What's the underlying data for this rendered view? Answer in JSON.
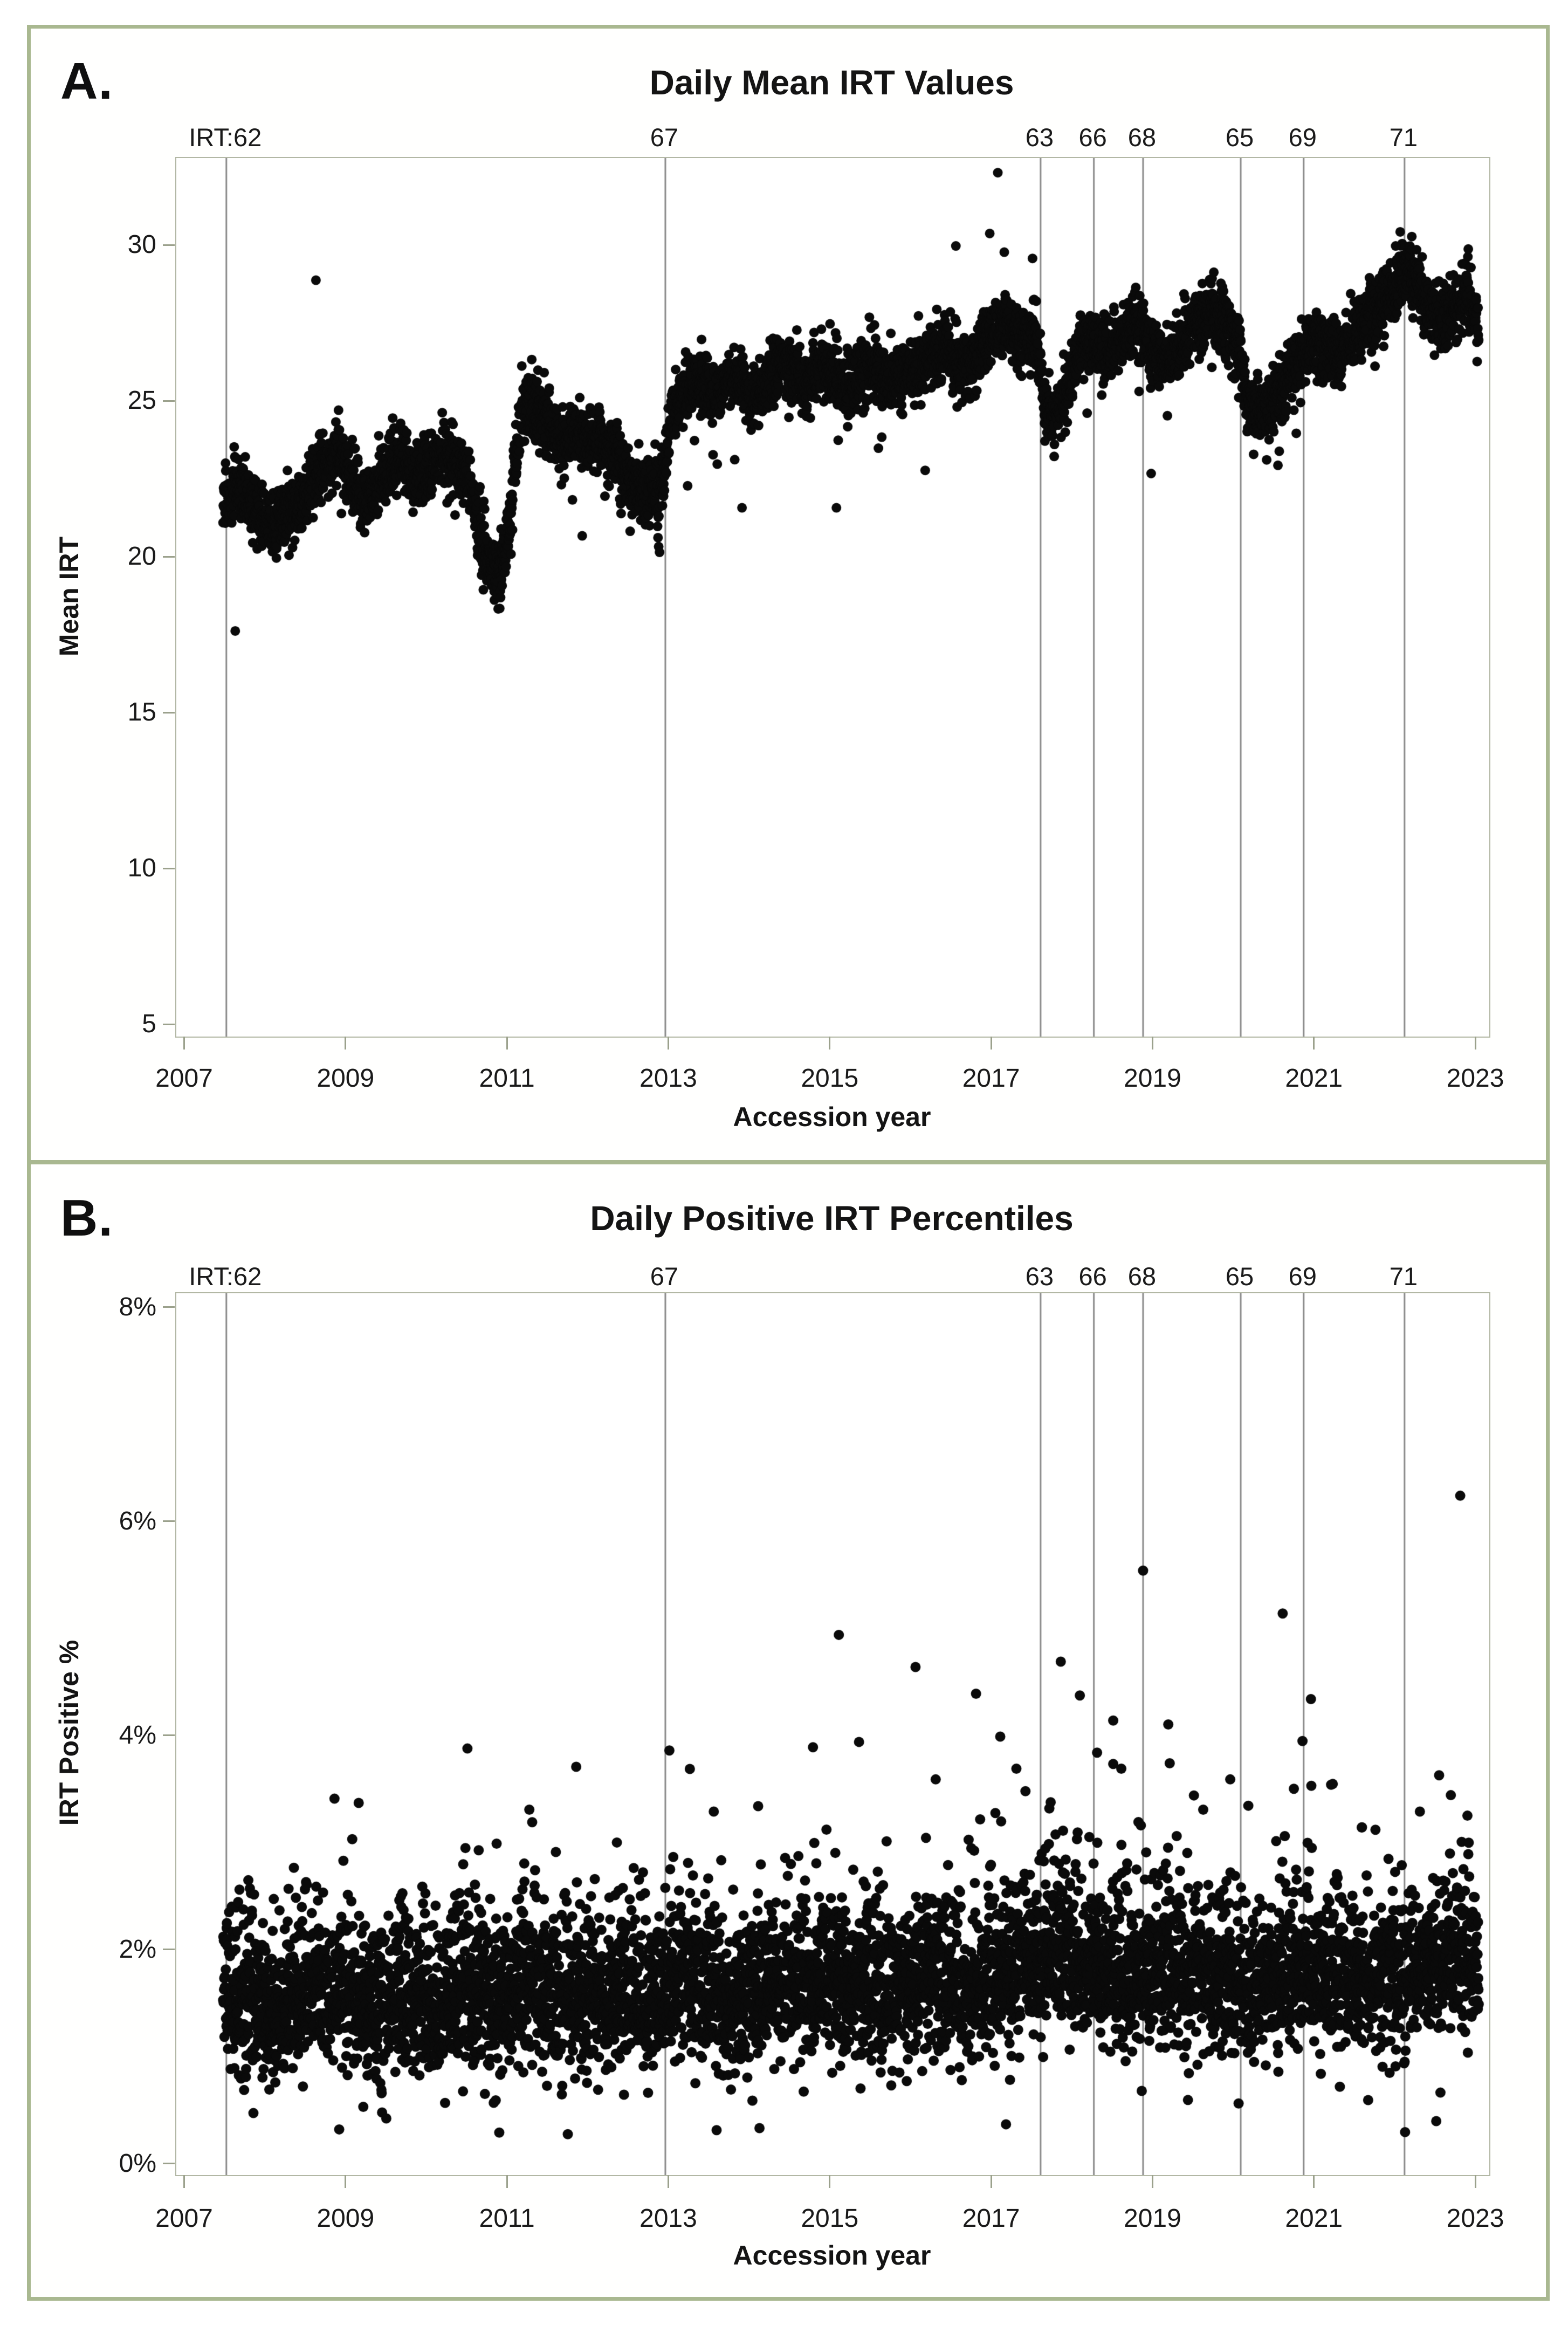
{
  "figure": {
    "panels": [
      {
        "corner_label": "A.",
        "title": "Daily Mean IRT Values",
        "xlabel": "Accession year",
        "ylabel": "Mean IRT"
      },
      {
        "corner_label": "B.",
        "title": "Daily Positive IRT Percentiles",
        "xlabel": "Accession year",
        "ylabel": "IRT Positive %"
      }
    ],
    "colors": {
      "panel_border": "#a9b890",
      "plot_frame": "#b2b7a4",
      "tick": "#9ba18c",
      "ref_line": "#8a8a8a",
      "point": "#0a0a0a",
      "text": "#1a1a1a"
    }
  },
  "chart_data": [
    {
      "type": "scatter",
      "title": "Daily Mean IRT Values",
      "xlabel": "Accession year",
      "ylabel": "Mean IRT",
      "legend": null,
      "grid": false,
      "xlim": [
        2006.89,
        2023.16
      ],
      "ylim": [
        4.64,
        32.82
      ],
      "x_ticks": [
        {
          "v": 2007,
          "label": "2007"
        },
        {
          "v": 2009,
          "label": "2009"
        },
        {
          "v": 2011,
          "label": "2011"
        },
        {
          "v": 2013,
          "label": "2013"
        },
        {
          "v": 2015,
          "label": "2015"
        },
        {
          "v": 2017,
          "label": "2017"
        },
        {
          "v": 2019,
          "label": "2019"
        },
        {
          "v": 2021,
          "label": "2021"
        },
        {
          "v": 2023,
          "label": "2023"
        }
      ],
      "y_ticks": [
        {
          "v": 30,
          "label": "30"
        },
        {
          "v": 25,
          "label": "25"
        },
        {
          "v": 20,
          "label": "20"
        },
        {
          "v": 15,
          "label": "15"
        },
        {
          "v": 10,
          "label": "10"
        },
        {
          "v": 5,
          "label": "5"
        }
      ],
      "ref_lines": [
        {
          "x": 2007.51,
          "label": "IRT:62"
        },
        {
          "x": 2012.95,
          "label": "67"
        },
        {
          "x": 2017.6,
          "label": "63"
        },
        {
          "x": 2018.26,
          "label": "66"
        },
        {
          "x": 2018.87,
          "label": "68"
        },
        {
          "x": 2020.08,
          "label": "65"
        },
        {
          "x": 2020.86,
          "label": "69"
        },
        {
          "x": 2022.11,
          "label": "71"
        }
      ],
      "series": {
        "name": "daily mean IRT",
        "x_start": 2007.47,
        "x_end": 2023.03,
        "points_per_year": 365,
        "noise_sd": 0.5,
        "skew_up": 0.22,
        "low_tail_p": 0.004,
        "clip": [
          17.5,
          32.5
        ],
        "random_seed": 42,
        "trend": [
          [
            2007.47,
            21.6
          ],
          [
            2007.55,
            21.95
          ],
          [
            2007.65,
            22.3
          ],
          [
            2007.8,
            21.7
          ],
          [
            2008.0,
            21.0
          ],
          [
            2008.2,
            21.2
          ],
          [
            2008.45,
            21.7
          ],
          [
            2008.7,
            22.8
          ],
          [
            2008.9,
            23.4
          ],
          [
            2009.1,
            22.3
          ],
          [
            2009.25,
            21.7
          ],
          [
            2009.45,
            22.6
          ],
          [
            2009.65,
            23.1
          ],
          [
            2009.85,
            22.4
          ],
          [
            2010.05,
            22.6
          ],
          [
            2010.2,
            23.3
          ],
          [
            2010.35,
            22.9
          ],
          [
            2010.5,
            22.4
          ],
          [
            2010.62,
            21.2
          ],
          [
            2010.75,
            19.8
          ],
          [
            2010.9,
            19.3
          ],
          [
            2011.0,
            20.6
          ],
          [
            2011.1,
            23.3
          ],
          [
            2011.2,
            24.9
          ],
          [
            2011.35,
            24.6
          ],
          [
            2011.5,
            24.2
          ],
          [
            2011.65,
            23.6
          ],
          [
            2011.8,
            23.9
          ],
          [
            2011.95,
            23.6
          ],
          [
            2012.1,
            23.8
          ],
          [
            2012.25,
            23.4
          ],
          [
            2012.4,
            22.9
          ],
          [
            2012.55,
            22.3
          ],
          [
            2012.7,
            22.0
          ],
          [
            2012.87,
            21.9
          ],
          [
            2012.96,
            23.2
          ],
          [
            2013.05,
            24.7
          ],
          [
            2013.2,
            25.2
          ],
          [
            2013.4,
            25.6
          ],
          [
            2013.6,
            25.1
          ],
          [
            2013.8,
            25.8
          ],
          [
            2014.0,
            25.0
          ],
          [
            2014.2,
            25.6
          ],
          [
            2014.45,
            26.1
          ],
          [
            2014.7,
            25.5
          ],
          [
            2014.95,
            26.2
          ],
          [
            2015.2,
            25.3
          ],
          [
            2015.45,
            26.0
          ],
          [
            2015.7,
            25.5
          ],
          [
            2015.95,
            25.9
          ],
          [
            2016.2,
            26.3
          ],
          [
            2016.45,
            26.6
          ],
          [
            2016.7,
            25.9
          ],
          [
            2016.95,
            27.0
          ],
          [
            2017.15,
            27.4
          ],
          [
            2017.35,
            26.8
          ],
          [
            2017.55,
            27.2
          ],
          [
            2017.62,
            25.3
          ],
          [
            2017.72,
            24.3
          ],
          [
            2017.85,
            24.8
          ],
          [
            2018.0,
            25.9
          ],
          [
            2018.15,
            27.0
          ],
          [
            2018.3,
            26.8
          ],
          [
            2018.45,
            26.4
          ],
          [
            2018.6,
            26.9
          ],
          [
            2018.75,
            27.4
          ],
          [
            2018.9,
            26.9
          ],
          [
            2019.05,
            26.4
          ],
          [
            2019.2,
            26.2
          ],
          [
            2019.35,
            26.8
          ],
          [
            2019.5,
            27.3
          ],
          [
            2019.7,
            27.9
          ],
          [
            2019.9,
            27.4
          ],
          [
            2020.05,
            26.6
          ],
          [
            2020.15,
            25.0
          ],
          [
            2020.3,
            24.5
          ],
          [
            2020.5,
            25.1
          ],
          [
            2020.7,
            25.9
          ],
          [
            2020.9,
            26.6
          ],
          [
            2021.1,
            26.8
          ],
          [
            2021.3,
            26.3
          ],
          [
            2021.5,
            27.1
          ],
          [
            2021.7,
            27.7
          ],
          [
            2021.9,
            28.2
          ],
          [
            2022.05,
            28.8
          ],
          [
            2022.18,
            29.2
          ],
          [
            2022.35,
            28.1
          ],
          [
            2022.55,
            27.4
          ],
          [
            2022.75,
            27.9
          ],
          [
            2022.9,
            28.3
          ],
          [
            2023.03,
            27.2
          ]
        ],
        "outliers": [
          [
            2007.62,
            17.65
          ],
          [
            2008.62,
            28.9
          ],
          [
            2011.92,
            20.7
          ],
          [
            2013.9,
            21.6
          ],
          [
            2015.07,
            21.6
          ],
          [
            2016.17,
            22.8
          ],
          [
            2016.55,
            30.0
          ],
          [
            2016.97,
            30.4
          ],
          [
            2017.07,
            32.35
          ],
          [
            2017.15,
            29.8
          ],
          [
            2017.5,
            29.6
          ],
          [
            2018.97,
            22.7
          ],
          [
            2022.0,
            30.0
          ],
          [
            2022.2,
            30.3
          ],
          [
            2022.9,
            29.9
          ]
        ]
      },
      "marker": {
        "radius": 9,
        "color": "#0a0a0a"
      }
    },
    {
      "type": "scatter",
      "title": "Daily Positive IRT Percentiles",
      "xlabel": "Accession year",
      "ylabel": "IRT Positive %",
      "legend": null,
      "grid": false,
      "xlim": [
        2006.89,
        2023.16
      ],
      "ylim": [
        -0.096,
        8.141
      ],
      "x_ticks": [
        {
          "v": 2007,
          "label": "2007"
        },
        {
          "v": 2009,
          "label": "2009"
        },
        {
          "v": 2011,
          "label": "2011"
        },
        {
          "v": 2013,
          "label": "2013"
        },
        {
          "v": 2015,
          "label": "2015"
        },
        {
          "v": 2017,
          "label": "2017"
        },
        {
          "v": 2019,
          "label": "2019"
        },
        {
          "v": 2021,
          "label": "2021"
        },
        {
          "v": 2023,
          "label": "2023"
        }
      ],
      "y_ticks": [
        {
          "v": 8,
          "label": "8%"
        },
        {
          "v": 6,
          "label": "6%"
        },
        {
          "v": 4,
          "label": "4%"
        },
        {
          "v": 2,
          "label": "2%"
        },
        {
          "v": 0,
          "label": "0%"
        }
      ],
      "ref_lines": [
        {
          "x": 2007.51,
          "label": "IRT:62"
        },
        {
          "x": 2012.95,
          "label": "67"
        },
        {
          "x": 2017.6,
          "label": "63"
        },
        {
          "x": 2018.26,
          "label": "66"
        },
        {
          "x": 2018.87,
          "label": "68"
        },
        {
          "x": 2020.08,
          "label": "65"
        },
        {
          "x": 2020.86,
          "label": "69"
        },
        {
          "x": 2022.11,
          "label": "71"
        }
      ],
      "series": {
        "name": "daily IRT positive percent",
        "x_start": 2007.47,
        "x_end": 2023.03,
        "points_per_year": 365,
        "noise_sd": 0.3,
        "skew_up": 0.42,
        "spike_p": 0.005,
        "low_stray_p": 0.003,
        "clip": [
          0.15,
          6.4
        ],
        "random_seed": 1234,
        "trend": [
          [
            2007.47,
            1.55
          ],
          [
            2007.8,
            1.35
          ],
          [
            2008.1,
            1.3
          ],
          [
            2008.5,
            1.5
          ],
          [
            2008.85,
            1.65
          ],
          [
            2009.2,
            1.4
          ],
          [
            2009.5,
            1.3
          ],
          [
            2009.8,
            1.5
          ],
          [
            2010.1,
            1.35
          ],
          [
            2010.5,
            1.5
          ],
          [
            2010.8,
            1.35
          ],
          [
            2011.2,
            1.55
          ],
          [
            2011.6,
            1.4
          ],
          [
            2012.0,
            1.45
          ],
          [
            2012.4,
            1.55
          ],
          [
            2012.8,
            1.4
          ],
          [
            2013.1,
            1.6
          ],
          [
            2013.5,
            1.5
          ],
          [
            2013.9,
            1.45
          ],
          [
            2014.3,
            1.6
          ],
          [
            2014.7,
            1.5
          ],
          [
            2015.1,
            1.6
          ],
          [
            2015.5,
            1.45
          ],
          [
            2015.9,
            1.55
          ],
          [
            2016.3,
            1.6
          ],
          [
            2016.7,
            1.5
          ],
          [
            2017.1,
            1.65
          ],
          [
            2017.5,
            1.75
          ],
          [
            2017.8,
            1.9
          ],
          [
            2018.1,
            1.8
          ],
          [
            2018.5,
            1.7
          ],
          [
            2018.9,
            1.75
          ],
          [
            2019.3,
            1.6
          ],
          [
            2019.7,
            1.65
          ],
          [
            2020.1,
            1.5
          ],
          [
            2020.5,
            1.6
          ],
          [
            2020.9,
            1.7
          ],
          [
            2021.3,
            1.55
          ],
          [
            2021.7,
            1.6
          ],
          [
            2022.1,
            1.7
          ],
          [
            2022.5,
            1.75
          ],
          [
            2022.9,
            1.8
          ]
        ],
        "outliers": [
          [
            2008.85,
            3.42
          ],
          [
            2009.15,
            3.38
          ],
          [
            2011.3,
            3.2
          ],
          [
            2013.0,
            3.87
          ],
          [
            2013.55,
            3.3
          ],
          [
            2014.1,
            3.35
          ],
          [
            2015.1,
            4.95
          ],
          [
            2015.35,
            3.95
          ],
          [
            2016.05,
            4.65
          ],
          [
            2016.3,
            3.6
          ],
          [
            2016.8,
            4.4
          ],
          [
            2017.1,
            4.0
          ],
          [
            2017.3,
            3.7
          ],
          [
            2017.85,
            4.7
          ],
          [
            2018.3,
            3.85
          ],
          [
            2018.5,
            4.15
          ],
          [
            2018.6,
            3.7
          ],
          [
            2018.87,
            5.55
          ],
          [
            2019.2,
            3.75
          ],
          [
            2019.5,
            3.45
          ],
          [
            2019.95,
            3.6
          ],
          [
            2020.6,
            5.15
          ],
          [
            2020.95,
            4.35
          ],
          [
            2021.2,
            3.55
          ],
          [
            2022.3,
            3.3
          ],
          [
            2022.8,
            6.25
          ]
        ]
      },
      "marker": {
        "radius": 9.5,
        "color": "#0a0a0a"
      }
    }
  ]
}
